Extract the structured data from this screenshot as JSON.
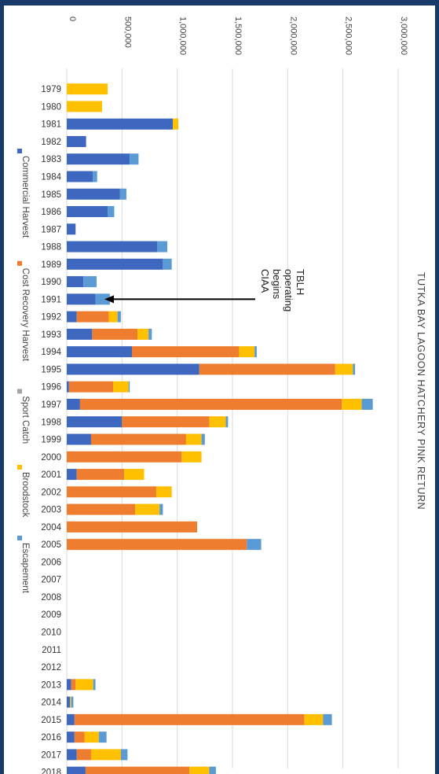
{
  "chart_data": {
    "type": "bar",
    "orientation": "stacked-horizontal, image rotated 90deg clockwise",
    "title": "TUTKA BAY LAGOON HATCHERY PINK RETURN",
    "xlabel": "",
    "ylabel": "",
    "xlim": [
      0,
      3000000
    ],
    "tick_values": [
      0,
      500000,
      1000000,
      1500000,
      2000000,
      2500000,
      3000000
    ],
    "tick_labels": [
      "0",
      "500,000",
      "1,000,000",
      "1,500,000",
      "2,000,000",
      "2,500,000",
      "3,000,000"
    ],
    "grid": true,
    "legend_position": "bottom",
    "categories": [
      "1979",
      "1980",
      "1981",
      "1982",
      "1983",
      "1984",
      "1985",
      "1986",
      "1987",
      "1988",
      "1989",
      "1990",
      "1991",
      "1992",
      "1993",
      "1994",
      "1995",
      "1996",
      "1997",
      "1998",
      "1999",
      "2000",
      "2001",
      "2002",
      "2003",
      "2004",
      "2005",
      "2006",
      "2007",
      "2008",
      "2009",
      "2010",
      "2011",
      "2012",
      "2013",
      "2014",
      "2015",
      "2016",
      "2017",
      "2018"
    ],
    "series": [
      {
        "name": "Commercial Harvest",
        "color": "#3e67c0",
        "values": [
          0,
          0,
          960000,
          175000,
          570000,
          235000,
          480000,
          370000,
          80000,
          820000,
          870000,
          150000,
          260000,
          90000,
          230000,
          590000,
          1200000,
          20000,
          120000,
          500000,
          220000,
          0,
          90000,
          0,
          0,
          0,
          0,
          0,
          0,
          0,
          0,
          0,
          0,
          0,
          40000,
          30000,
          70000,
          70000,
          90000,
          170000
        ]
      },
      {
        "name": "Cost Recovery Harvest",
        "color": "#ef7d2f",
        "values": [
          0,
          0,
          0,
          0,
          0,
          0,
          0,
          0,
          0,
          0,
          0,
          0,
          0,
          290000,
          410000,
          970000,
          1230000,
          400000,
          2370000,
          790000,
          860000,
          1040000,
          430000,
          810000,
          620000,
          1180000,
          1630000,
          0,
          0,
          0,
          0,
          0,
          0,
          0,
          40000,
          0,
          2080000,
          90000,
          130000,
          940000
        ]
      },
      {
        "name": "Sport Catch",
        "color": "#a5a5a5",
        "values": [
          0,
          0,
          0,
          0,
          0,
          0,
          0,
          0,
          0,
          0,
          0,
          0,
          0,
          0,
          0,
          0,
          0,
          0,
          0,
          0,
          0,
          0,
          0,
          0,
          0,
          0,
          0,
          0,
          0,
          0,
          0,
          0,
          0,
          0,
          0,
          0,
          0,
          0,
          0,
          0
        ]
      },
      {
        "name": "Broodstock",
        "color": "#ffc000",
        "values": [
          370000,
          320000,
          50000,
          0,
          0,
          0,
          0,
          0,
          0,
          0,
          0,
          0,
          0,
          80000,
          100000,
          140000,
          160000,
          140000,
          180000,
          150000,
          140000,
          180000,
          180000,
          140000,
          220000,
          0,
          0,
          0,
          0,
          0,
          0,
          0,
          0,
          0,
          160000,
          10000,
          170000,
          130000,
          270000,
          180000
        ]
      },
      {
        "name": "Escapement",
        "color": "#5b9bd5",
        "values": [
          0,
          0,
          0,
          0,
          80000,
          40000,
          60000,
          60000,
          0,
          90000,
          80000,
          120000,
          130000,
          30000,
          30000,
          20000,
          20000,
          10000,
          100000,
          20000,
          30000,
          0,
          0,
          0,
          30000,
          0,
          130000,
          0,
          0,
          0,
          0,
          0,
          0,
          0,
          20000,
          20000,
          80000,
          70000,
          60000,
          60000
        ]
      }
    ],
    "annotations": [
      {
        "text": "CIAA begins operating TBLH",
        "category": "1991"
      }
    ]
  }
}
